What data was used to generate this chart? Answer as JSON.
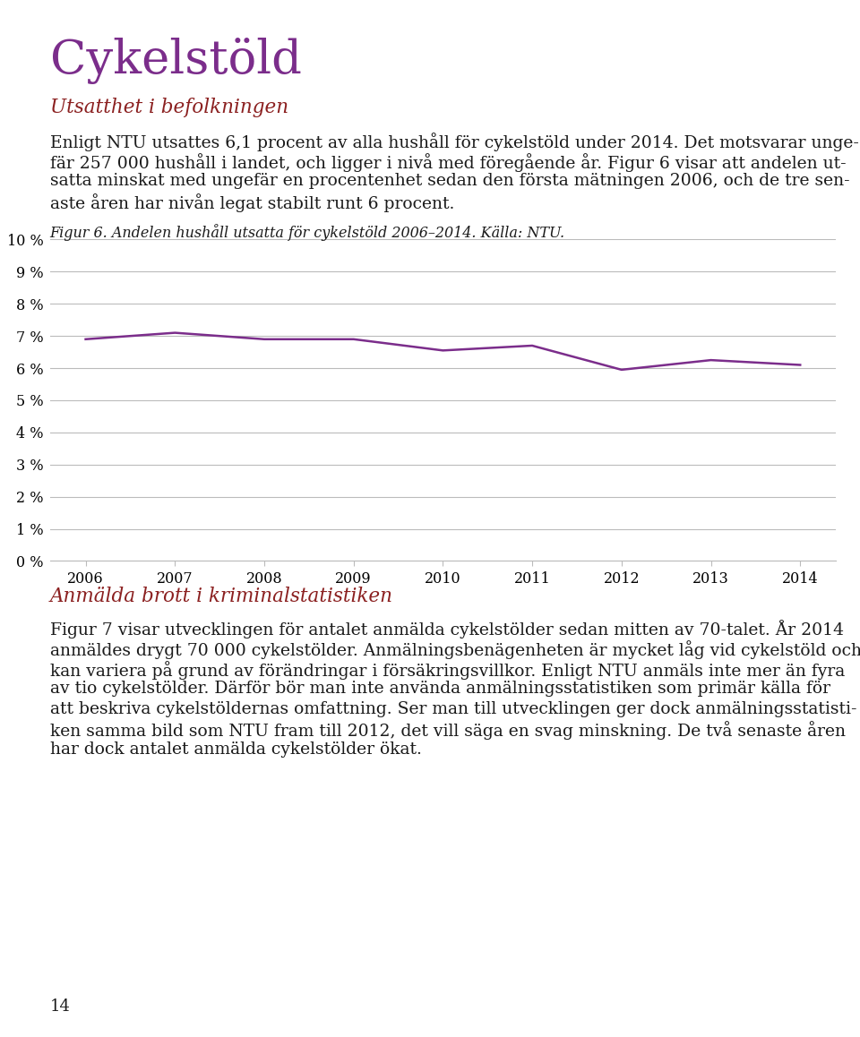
{
  "title": "Cykelstöld",
  "title_color": "#7B2D8B",
  "section1_heading": "Utsatthet i befolkningen",
  "section1_heading_color": "#8B2020",
  "section1_text1": "Enligt NTU utsattes 6,1 procent av alla hushåll för cykelstöld under 2014. Det motsvarar unge-",
  "section1_text2": "fär 257 000 hushåll i landet, och ligger i nivå med föregående år. Figur 6 visar att andelen ut-",
  "section1_text3": "satta minskat med ungefär en procentenhet sedan den första mätningen 2006, och de tre sen-",
  "section1_text4": "aste åren har nivån legat stabilt runt 6 procent.",
  "figure_caption": "Figur 6. Andelen hushåll utsatta för cykelstöld 2006–2014. Källa: NTU.",
  "years": [
    2006,
    2007,
    2008,
    2009,
    2010,
    2011,
    2012,
    2013,
    2014
  ],
  "values": [
    6.9,
    7.1,
    6.9,
    6.9,
    6.55,
    6.7,
    5.95,
    6.25,
    6.1
  ],
  "line_color": "#7B2D8B",
  "line_width": 1.8,
  "ylim": [
    0,
    10
  ],
  "yticks": [
    0,
    1,
    2,
    3,
    4,
    5,
    6,
    7,
    8,
    9,
    10
  ],
  "ytick_labels": [
    "0 %",
    "1 %",
    "2 %",
    "3 %",
    "4 %",
    "5 %",
    "6 %",
    "7 %",
    "8 %",
    "9 %",
    "10 %"
  ],
  "grid_color": "#BBBBBB",
  "section2_heading": "Anmälda brott i kriminalstatistiken",
  "section2_heading_color": "#8B2020",
  "section2_text1": "Figur 7 visar utvecklingen för antalet anmälda cykelstölder sedan mitten av 70-talet. År 2014",
  "section2_text2": "anmäldes drygt 70 000 cykelstölder. Anmälningsbenägenheten är mycket låg vid cykelstöld och",
  "section2_text3": "kan variera på grund av förändringar i försäkringsvillkor. Enligt NTU anmäls inte mer än fyra",
  "section2_text4": "av tio cykelstölder. Därför bör man inte använda anmälningsstatistiken som primär källa för",
  "section2_text5": "att beskriva cykelstöldernas omfattning. Ser man till utvecklingen ger dock anmälningsstatisti-",
  "section2_text6": "ken samma bild som NTU fram till 2012, det vill säga en svag minskning. De två senaste åren",
  "section2_text7": "har dock antalet anmälda cykelstölder ökat.",
  "page_number": "14",
  "background_color": "#FFFFFF",
  "text_color": "#1A1A1A",
  "body_fontsize": 13.5,
  "caption_fontsize": 11.5,
  "axis_fontsize": 11.5
}
